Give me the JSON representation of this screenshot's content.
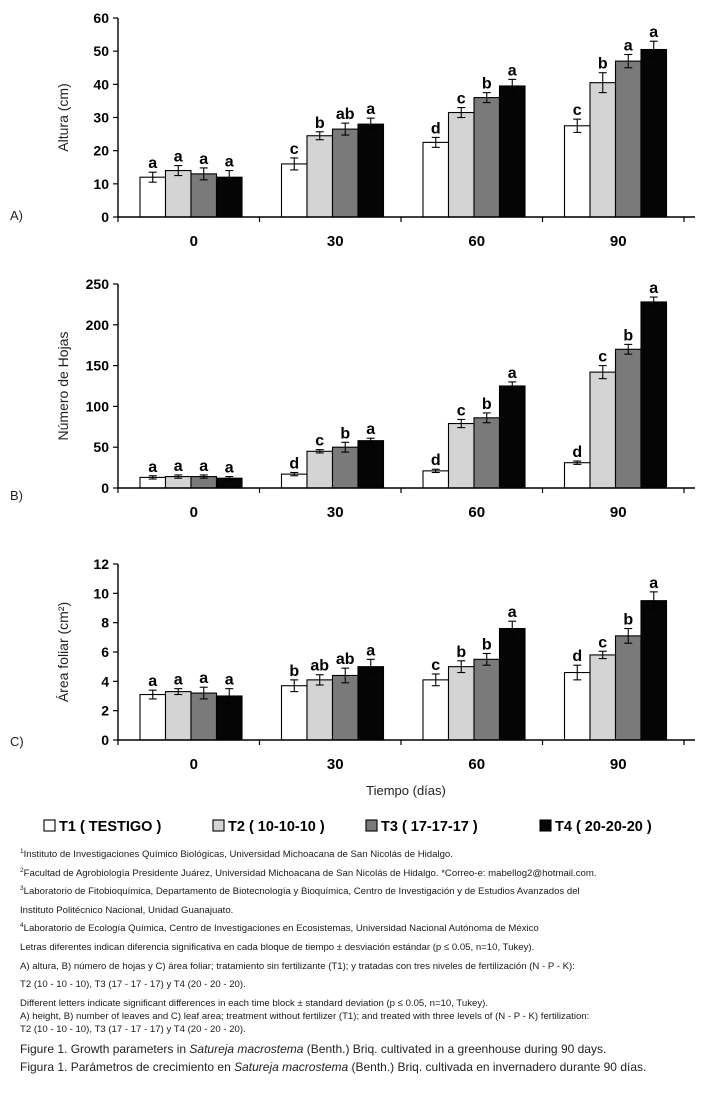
{
  "chart_data": [
    {
      "type": "bar",
      "panel_label": "A)",
      "ylabel": "Altura (cm)",
      "ylim": [
        0,
        60
      ],
      "yticks": [
        "0",
        "10",
        "20",
        "30",
        "40",
        "50",
        "60"
      ],
      "categories": [
        "0",
        "30",
        "60",
        "90"
      ],
      "series": [
        {
          "name": "T1 ( TESTIGO )",
          "values": [
            12,
            16,
            22.5,
            27.5
          ],
          "errors": [
            1.5,
            1.8,
            1.5,
            2
          ],
          "letters": [
            "a",
            "c",
            "d",
            "c"
          ]
        },
        {
          "name": "T2 ( 10-10-10 )",
          "values": [
            14,
            24.5,
            31.5,
            40.5
          ],
          "errors": [
            1.5,
            1.2,
            1.5,
            3
          ],
          "letters": [
            "a",
            "b",
            "c",
            "b"
          ]
        },
        {
          "name": "T3 ( 17-17-17 )",
          "values": [
            13,
            26.5,
            36,
            47
          ],
          "errors": [
            1.8,
            1.8,
            1.5,
            2
          ],
          "letters": [
            "a",
            "ab",
            "b",
            "a"
          ]
        },
        {
          "name": "T4 ( 20-20-20 )",
          "values": [
            12,
            28,
            39.5,
            50.5
          ],
          "errors": [
            2,
            1.8,
            2,
            2.5
          ],
          "letters": [
            "a",
            "a",
            "a",
            "a"
          ]
        }
      ]
    },
    {
      "type": "bar",
      "panel_label": "B)",
      "ylabel": "Número de Hojas",
      "ylim": [
        0,
        250
      ],
      "yticks": [
        "0",
        "50",
        "100",
        "150",
        "200",
        "250"
      ],
      "categories": [
        "0",
        "30",
        "60",
        "90"
      ],
      "series": [
        {
          "name": "T1 ( TESTIGO )",
          "values": [
            13,
            17,
            21,
            31
          ],
          "errors": [
            2,
            2,
            2,
            2
          ],
          "letters": [
            "a",
            "d",
            "d",
            "d"
          ]
        },
        {
          "name": "T2 ( 10-10-10 )",
          "values": [
            14,
            45,
            79,
            142
          ],
          "errors": [
            2,
            2,
            5,
            8
          ],
          "letters": [
            "a",
            "c",
            "c",
            "c"
          ]
        },
        {
          "name": "T3 ( 17-17-17 )",
          "values": [
            14,
            50,
            86,
            170
          ],
          "errors": [
            2,
            6,
            6,
            6
          ],
          "letters": [
            "a",
            "b",
            "b",
            "b"
          ]
        },
        {
          "name": "T4 ( 20-20-20 )",
          "values": [
            12,
            58,
            125,
            228
          ],
          "errors": [
            2,
            3,
            5,
            6
          ],
          "letters": [
            "a",
            "a",
            "a",
            "a"
          ]
        }
      ]
    },
    {
      "type": "bar",
      "panel_label": "C)",
      "ylabel": "Área foliar (cm²)",
      "xlabel": "Tiempo (días)",
      "ylim": [
        0,
        12
      ],
      "yticks": [
        "0",
        "2",
        "4",
        "6",
        "8",
        "10",
        "12"
      ],
      "categories": [
        "0",
        "30",
        "60",
        "90"
      ],
      "series": [
        {
          "name": "T1 ( TESTIGO )",
          "values": [
            3.1,
            3.7,
            4.1,
            4.6
          ],
          "errors": [
            0.3,
            0.4,
            0.4,
            0.5
          ],
          "letters": [
            "a",
            "b",
            "c",
            "d"
          ]
        },
        {
          "name": "T2 ( 10-10-10 )",
          "values": [
            3.3,
            4.1,
            5.0,
            5.8
          ],
          "errors": [
            0.2,
            0.35,
            0.4,
            0.25
          ],
          "letters": [
            "a",
            "ab",
            "b",
            "c"
          ]
        },
        {
          "name": "T3 ( 17-17-17 )",
          "values": [
            3.2,
            4.4,
            5.5,
            7.1
          ],
          "errors": [
            0.4,
            0.5,
            0.4,
            0.5
          ],
          "letters": [
            "a",
            "ab",
            "b",
            "b"
          ]
        },
        {
          "name": "T4 ( 20-20-20 )",
          "values": [
            3.0,
            5.0,
            7.6,
            9.5
          ],
          "errors": [
            0.5,
            0.5,
            0.5,
            0.6
          ],
          "letters": [
            "a",
            "a",
            "a",
            "a"
          ]
        }
      ]
    }
  ],
  "series_colors": [
    "#ffffff",
    "#d4d4d4",
    "#7a7a7a",
    "#050505"
  ],
  "legend": [
    "T1 ( TESTIGO )",
    "T2 ( 10-10-10 )",
    "T3 ( 17-17-17 )",
    "T4 ( 20-20-20 )"
  ],
  "notes": {
    "aff1_num": "1",
    "aff1": "Instituto de Investigaciones Químico Biológicas, Universidad Michoacana de San Nicolás de Hidalgo.",
    "aff2_num": "2",
    "aff2": "Facultad de Agrobiología Presidente Juárez, Universidad Michoacana de San Nicolás de Hidalgo. *Correo-e: mabellog2@hotmail.com.",
    "aff3_num": "3",
    "aff3a": "Laboratorio de Fitobioquímica, Departamento de Biotecnología y Bioquímica, Centro de Investigación y de Estudios Avanzados del",
    "aff3b": "Instituto Politécnico Nacional, Unidad Guanajuato.",
    "aff4_num": "4",
    "aff4": "Laboratorio de Ecología Química, Centro de Investigaciones en Ecosistemas, Universidad Nacional Autónoma de México",
    "es1": "Letras diferentes indican diferencia significativa en cada bloque de tiempo ± desviación estándar (p ≤ 0.05, n=10, Tukey).",
    "es2": "A) altura, B) número de hojas y C) área foliar; tratamiento sin fertilizante (T1); y tratadas con tres niveles de fertilización (N - P - K):",
    "es3": "T2 (10 - 10 - 10), T3 (17 - 17 - 17) y T4 (20 - 20 - 20).",
    "en1": "Different letters indicate significant differences in each time block ± standard deviation (p ≤ 0.05, n=10, Tukey).",
    "en2": "A) height, B) number of leaves and C) leaf area; treatment without fertilizer (T1); and treated with three levels of (N - P - K) fertilization:",
    "en3": "T2 (10 - 10 - 10), T3 (17 - 17 - 17) y T4 (20 - 20 - 20).",
    "fig_en_pre": "Figure 1. Growth parameters in ",
    "fig_en_species": "Satureja macrostema",
    "fig_en_post": " (Benth.) Briq. cultivated in a greenhouse during 90 days.",
    "fig_es_pre": "Figura 1. Parámetros de crecimiento en ",
    "fig_es_species": "Satureja macrostema",
    "fig_es_post": " (Benth.) Briq. cultivada en invernadero durante 90 días."
  }
}
